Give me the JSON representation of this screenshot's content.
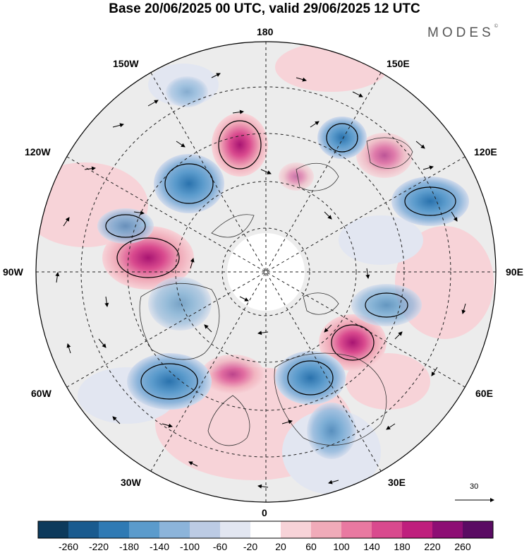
{
  "title": "Base 20/06/2025 00 UTC, valid 29/06/2025 12 UTC",
  "brand": "MODES",
  "brand_mark": "©",
  "longitude_labels": {
    "top": "180",
    "bottom": "0",
    "left": "90W",
    "right": "90E",
    "upper_left": "150W",
    "upper_right": "150E",
    "mid_left_upper": "120W",
    "mid_right_upper": "120E",
    "lower_left": "60W",
    "lower_right": "60E",
    "bottom_left": "30W",
    "bottom_right": "30E"
  },
  "reference_vector": {
    "label": "30"
  },
  "colorbar": {
    "ticks": [
      "-260",
      "-220",
      "-180",
      "-140",
      "-100",
      "-60",
      "-20",
      "20",
      "60",
      "100",
      "140",
      "180",
      "220",
      "260"
    ],
    "colors": [
      "#0d3a5c",
      "#1a5b8f",
      "#2f7ab4",
      "#5b9bcc",
      "#8cb4da",
      "#bccbe4",
      "#e2e6f1",
      "#ffffff",
      "#f7d3d8",
      "#f0abb9",
      "#e979a1",
      "#d94a8e",
      "#bf1f7d",
      "#8d0e74",
      "#5a0b63"
    ]
  },
  "colors": {
    "accent": "#d94a8e",
    "cold": "#2f7ab4"
  }
}
